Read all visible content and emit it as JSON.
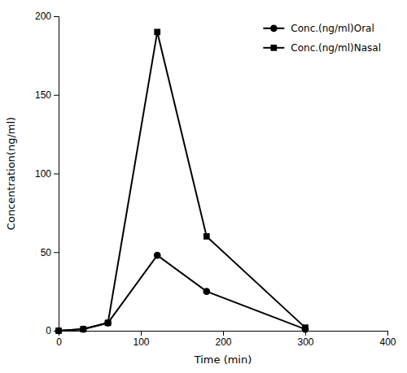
{
  "chart_data": {
    "type": "line",
    "x": [
      0,
      30,
      60,
      120,
      180,
      300
    ],
    "series": [
      {
        "name": "Conc.(ng/ml)Oral",
        "color": "#000000",
        "marker": "circle",
        "values": [
          0,
          1,
          5,
          48,
          25,
          1
        ]
      },
      {
        "name": "Conc.(ng/ml)Nasal",
        "color": "#000000",
        "marker": "square",
        "values": [
          0,
          1,
          5,
          190,
          60,
          2
        ]
      }
    ],
    "xlabel": "Time (min)",
    "ylabel": "Concentration(ng/ml)",
    "xlim": [
      0,
      400
    ],
    "ylim": [
      0,
      200
    ],
    "xticks": [
      0,
      100,
      200,
      300,
      400
    ],
    "yticks": [
      0,
      50,
      100,
      150,
      200
    ],
    "legend": "upper right",
    "grid": false
  }
}
